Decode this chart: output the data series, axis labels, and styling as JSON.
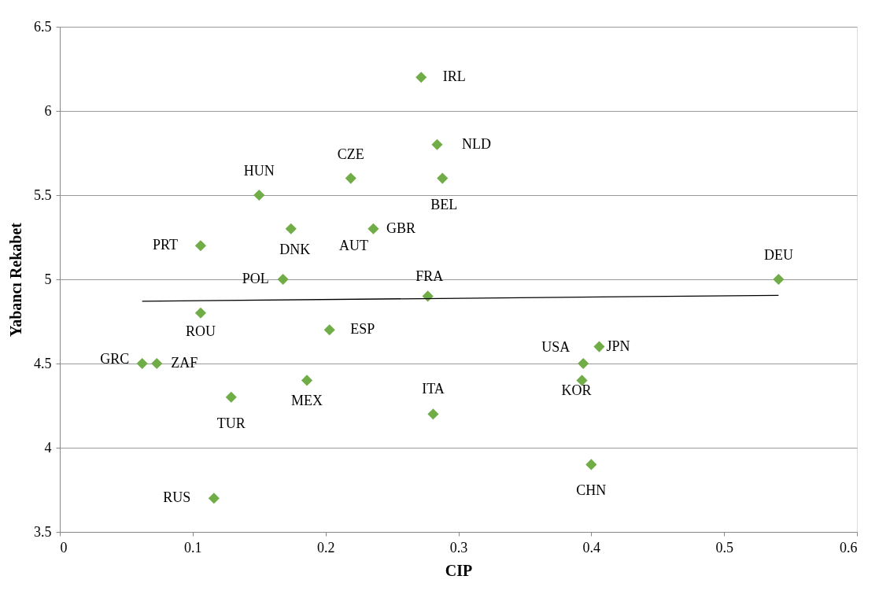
{
  "chart_data": {
    "type": "scatter",
    "xlabel": "CIP",
    "ylabel": "Yabancı Rekabet",
    "xlim": [
      0,
      0.6
    ],
    "xticks": [
      0,
      0.1,
      0.2,
      0.3,
      0.4,
      0.5,
      0.6
    ],
    "ylim": [
      3.5,
      6.5
    ],
    "yticks": [
      3.5,
      4,
      4.5,
      5,
      5.5,
      6,
      6.5
    ],
    "grid": "y",
    "series": [
      {
        "marker": "diamond",
        "color": "#70ad47",
        "x": [
          0.272,
          0.284,
          0.219,
          0.288,
          0.15,
          0.174,
          0.236,
          0.106,
          0.541,
          0.168,
          0.277,
          0.106,
          0.203,
          0.406,
          0.394,
          0.062,
          0.073,
          0.393,
          0.186,
          0.129,
          0.281,
          0.4,
          0.116
        ],
        "values": [
          6.2,
          5.8,
          5.6,
          5.6,
          5.5,
          5.3,
          5.3,
          5.2,
          5.0,
          5.0,
          4.9,
          4.8,
          4.7,
          4.6,
          4.5,
          4.5,
          4.5,
          4.4,
          4.4,
          4.3,
          4.2,
          3.9,
          3.7
        ]
      },
      {
        "type": "line",
        "color": "#000000",
        "x": [
          0.062,
          0.541
        ],
        "values": [
          4.87,
          4.905
        ]
      }
    ],
    "annotations": [
      {
        "text": "IRL",
        "x": 0.272,
        "y": 6.2
      },
      {
        "text": "NLD",
        "x": 0.284,
        "y": 5.8
      },
      {
        "text": "CZE",
        "x": 0.219,
        "y": 5.6
      },
      {
        "text": "BEL",
        "x": 0.288,
        "y": 5.6
      },
      {
        "text": "HUN",
        "x": 0.15,
        "y": 5.5
      },
      {
        "text": "DNK",
        "x": 0.174,
        "y": 5.3
      },
      {
        "text": "GBR",
        "x": 0.236,
        "y": 5.3
      },
      {
        "text": "AUT",
        "x": 0.236,
        "y": 5.3
      },
      {
        "text": "PRT",
        "x": 0.106,
        "y": 5.2
      },
      {
        "text": "DEU",
        "x": 0.541,
        "y": 5.0
      },
      {
        "text": "POL",
        "x": 0.168,
        "y": 5.0
      },
      {
        "text": "FRA",
        "x": 0.277,
        "y": 4.9
      },
      {
        "text": "ROU",
        "x": 0.106,
        "y": 4.8
      },
      {
        "text": "ESP",
        "x": 0.203,
        "y": 4.7
      },
      {
        "text": "JPN",
        "x": 0.406,
        "y": 4.6
      },
      {
        "text": "USA",
        "x": 0.394,
        "y": 4.5
      },
      {
        "text": "GRC",
        "x": 0.062,
        "y": 4.5
      },
      {
        "text": "ZAF",
        "x": 0.073,
        "y": 4.5
      },
      {
        "text": "KOR",
        "x": 0.393,
        "y": 4.4
      },
      {
        "text": "MEX",
        "x": 0.186,
        "y": 4.4
      },
      {
        "text": "TUR",
        "x": 0.129,
        "y": 4.3
      },
      {
        "text": "ITA",
        "x": 0.281,
        "y": 4.2
      },
      {
        "text": "CHN",
        "x": 0.4,
        "y": 3.9
      },
      {
        "text": "RUS",
        "x": 0.116,
        "y": 3.7
      }
    ]
  }
}
